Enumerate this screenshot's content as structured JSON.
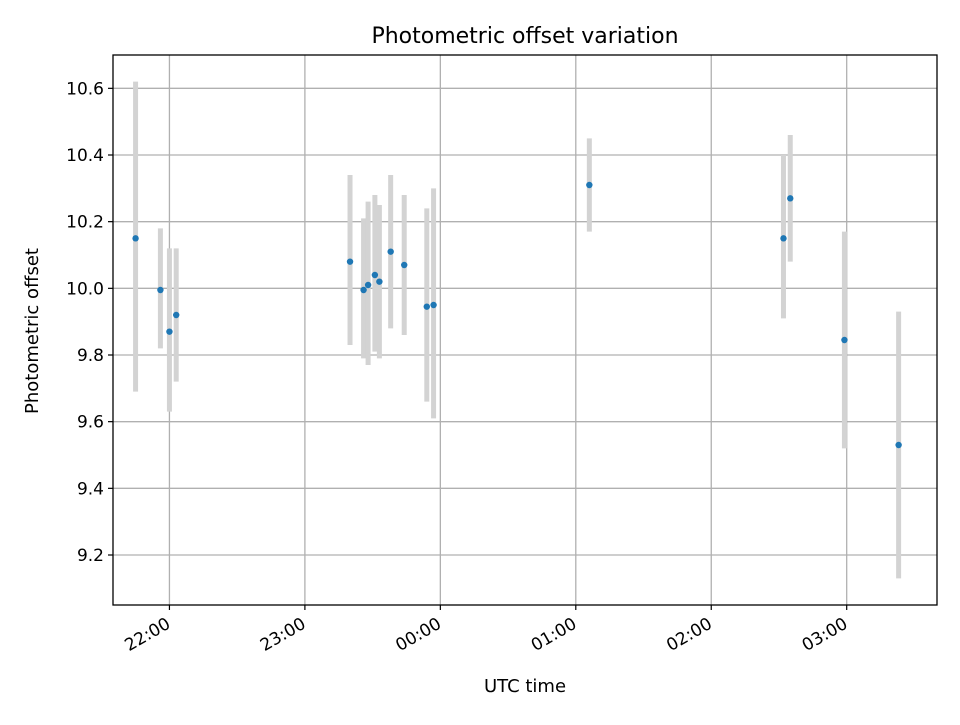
{
  "chart_data": {
    "type": "scatter",
    "title": "Photometric offset variation",
    "xlabel": "UTC time",
    "ylabel": "Photometric offset",
    "x_axis": "time",
    "xlim": [
      "21:35",
      "03:40"
    ],
    "ylim": [
      9.05,
      10.7
    ],
    "grid": true,
    "x_ticks": [
      "22:00",
      "23:00",
      "00:00",
      "01:00",
      "02:00",
      "03:00"
    ],
    "y_ticks": [
      "9.2",
      "9.4",
      "9.6",
      "9.8",
      "10.0",
      "10.2",
      "10.4",
      "10.6"
    ],
    "series": [
      {
        "marker_color": "#1f77b4",
        "errorbar_color": "#d3d3d3",
        "points": [
          {
            "x": "21:45",
            "y": 10.15,
            "ylow": 9.69,
            "yhigh": 10.62
          },
          {
            "x": "21:56",
            "y": 9.995,
            "ylow": 9.82,
            "yhigh": 10.18
          },
          {
            "x": "22:00",
            "y": 9.87,
            "ylow": 9.63,
            "yhigh": 10.12
          },
          {
            "x": "22:03",
            "y": 9.92,
            "ylow": 9.72,
            "yhigh": 10.12
          },
          {
            "x": "23:20",
            "y": 10.08,
            "ylow": 9.83,
            "yhigh": 10.34
          },
          {
            "x": "23:26",
            "y": 9.995,
            "ylow": 9.79,
            "yhigh": 10.21
          },
          {
            "x": "23:28",
            "y": 10.01,
            "ylow": 9.77,
            "yhigh": 10.26
          },
          {
            "x": "23:31",
            "y": 10.04,
            "ylow": 9.81,
            "yhigh": 10.28
          },
          {
            "x": "23:33",
            "y": 10.02,
            "ylow": 9.79,
            "yhigh": 10.25
          },
          {
            "x": "23:38",
            "y": 10.11,
            "ylow": 9.88,
            "yhigh": 10.34
          },
          {
            "x": "23:44",
            "y": 10.07,
            "ylow": 9.86,
            "yhigh": 10.28
          },
          {
            "x": "23:54",
            "y": 9.945,
            "ylow": 9.66,
            "yhigh": 10.24
          },
          {
            "x": "23:57",
            "y": 9.95,
            "ylow": 9.61,
            "yhigh": 10.3
          },
          {
            "x": "01:06",
            "y": 10.31,
            "ylow": 10.17,
            "yhigh": 10.45
          },
          {
            "x": "02:32",
            "y": 10.15,
            "ylow": 9.91,
            "yhigh": 10.4
          },
          {
            "x": "02:35",
            "y": 10.27,
            "ylow": 10.08,
            "yhigh": 10.46
          },
          {
            "x": "02:59",
            "y": 9.845,
            "ylow": 9.52,
            "yhigh": 10.17
          },
          {
            "x": "03:23",
            "y": 9.53,
            "ylow": 9.13,
            "yhigh": 9.93
          }
        ]
      }
    ]
  }
}
